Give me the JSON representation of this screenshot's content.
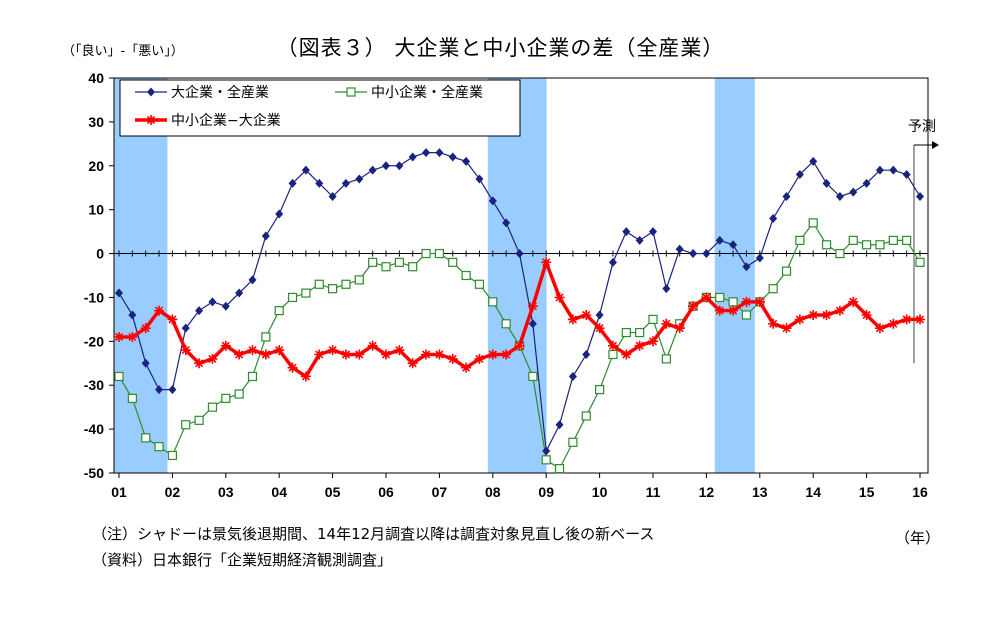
{
  "title": "（図表３） 大企業と中小企業の差（全産業）",
  "y_unit": "（「良い」-「悪い」）",
  "x_unit": "（年）",
  "note": "（注）シャドーは景気後退期間、14年12月調査以降は調査対象見直し後の新ベース",
  "source": "（資料）日本銀行「企業短期経済観測調査」",
  "forecast_label": "予測",
  "colors": {
    "large": "#1a237e",
    "small": "#2e8b2e",
    "diff": "#ff0000",
    "shade": "#99ccff"
  },
  "chart_data": {
    "type": "line",
    "title": "（図表３） 大企業と中小企業の差（全産業）",
    "ylabel": "（「良い」-「悪い」）",
    "xlabel": "（年）",
    "ylim": [
      -50,
      40
    ],
    "yticks": [
      40,
      30,
      20,
      10,
      0,
      -10,
      -20,
      -30,
      -40,
      -50
    ],
    "xlim": [
      2001,
      2016.25
    ],
    "xticks": [
      "01",
      "02",
      "03",
      "04",
      "05",
      "06",
      "07",
      "08",
      "09",
      "10",
      "11",
      "12",
      "13",
      "14",
      "15",
      "16"
    ],
    "grid": false,
    "legend_position": "top-left",
    "recession_shading": [
      [
        2001.0,
        2002.0
      ],
      [
        2008.0,
        2009.1
      ],
      [
        2012.25,
        2013.0
      ]
    ],
    "forecast_from": 2016.0,
    "series": [
      {
        "name": "大企業・全産業",
        "marker": "diamond",
        "x": [
          2001.0,
          2001.25,
          2001.5,
          2001.75,
          2002.0,
          2002.25,
          2002.5,
          2002.75,
          2003.0,
          2003.25,
          2003.5,
          2003.75,
          2004.0,
          2004.25,
          2004.5,
          2004.75,
          2005.0,
          2005.25,
          2005.5,
          2005.75,
          2006.0,
          2006.25,
          2006.5,
          2006.75,
          2007.0,
          2007.25,
          2007.5,
          2007.75,
          2008.0,
          2008.25,
          2008.5,
          2008.75,
          2009.0,
          2009.25,
          2009.5,
          2009.75,
          2010.0,
          2010.25,
          2010.5,
          2010.75,
          2011.0,
          2011.25,
          2011.5,
          2011.75,
          2012.0,
          2012.25,
          2012.5,
          2012.75,
          2013.0,
          2013.25,
          2013.5,
          2013.75,
          2014.0,
          2014.25,
          2014.5,
          2014.75,
          2015.0,
          2015.25,
          2015.5,
          2015.75,
          2016.0
        ],
        "values": [
          -9,
          -14,
          -25,
          -31,
          -31,
          -17,
          -13,
          -11,
          -12,
          -9,
          -6,
          4,
          9,
          16,
          19,
          16,
          13,
          16,
          17,
          19,
          20,
          20,
          22,
          23,
          23,
          22,
          21,
          17,
          12,
          7,
          0,
          -16,
          -45,
          -39,
          -28,
          -23,
          -14,
          -2,
          5,
          3,
          5,
          -8,
          1,
          0,
          0,
          3,
          2,
          -3,
          -1,
          8,
          13,
          18,
          21,
          16,
          13,
          14,
          16,
          19,
          19,
          18,
          13
        ]
      },
      {
        "name": "中小企業・全産業",
        "marker": "square",
        "x": [
          2001.0,
          2001.25,
          2001.5,
          2001.75,
          2002.0,
          2002.25,
          2002.5,
          2002.75,
          2003.0,
          2003.25,
          2003.5,
          2003.75,
          2004.0,
          2004.25,
          2004.5,
          2004.75,
          2005.0,
          2005.25,
          2005.5,
          2005.75,
          2006.0,
          2006.25,
          2006.5,
          2006.75,
          2007.0,
          2007.25,
          2007.5,
          2007.75,
          2008.0,
          2008.25,
          2008.5,
          2008.75,
          2009.0,
          2009.25,
          2009.5,
          2009.75,
          2010.0,
          2010.25,
          2010.5,
          2010.75,
          2011.0,
          2011.25,
          2011.5,
          2011.75,
          2012.0,
          2012.25,
          2012.5,
          2012.75,
          2013.0,
          2013.25,
          2013.5,
          2013.75,
          2014.0,
          2014.25,
          2014.5,
          2014.75,
          2015.0,
          2015.25,
          2015.5,
          2015.75,
          2016.0
        ],
        "values": [
          -28,
          -33,
          -42,
          -44,
          -46,
          -39,
          -38,
          -35,
          -33,
          -32,
          -28,
          -19,
          -13,
          -10,
          -9,
          -7,
          -8,
          -7,
          -6,
          -2,
          -3,
          -2,
          -3,
          0,
          0,
          -2,
          -5,
          -7,
          -11,
          -16,
          -21,
          -28,
          -47,
          -49,
          -43,
          -37,
          -31,
          -23,
          -18,
          -18,
          -15,
          -24,
          -16,
          -12,
          -10,
          -10,
          -11,
          -14,
          -11,
          -8,
          -4,
          3,
          7,
          2,
          0,
          3,
          2,
          2,
          3,
          3,
          -2
        ]
      },
      {
        "name": "中小企業−大企業",
        "marker": "star",
        "x": [
          2001.0,
          2001.25,
          2001.5,
          2001.75,
          2002.0,
          2002.25,
          2002.5,
          2002.75,
          2003.0,
          2003.25,
          2003.5,
          2003.75,
          2004.0,
          2004.25,
          2004.5,
          2004.75,
          2005.0,
          2005.25,
          2005.5,
          2005.75,
          2006.0,
          2006.25,
          2006.5,
          2006.75,
          2007.0,
          2007.25,
          2007.5,
          2007.75,
          2008.0,
          2008.25,
          2008.5,
          2008.75,
          2009.0,
          2009.25,
          2009.5,
          2009.75,
          2010.0,
          2010.25,
          2010.5,
          2010.75,
          2011.0,
          2011.25,
          2011.5,
          2011.75,
          2012.0,
          2012.25,
          2012.5,
          2012.75,
          2013.0,
          2013.25,
          2013.5,
          2013.75,
          2014.0,
          2014.25,
          2014.5,
          2014.75,
          2015.0,
          2015.25,
          2015.5,
          2015.75,
          2016.0
        ],
        "values": [
          -19,
          -19,
          -17,
          -13,
          -15,
          -22,
          -25,
          -24,
          -21,
          -23,
          -22,
          -23,
          -22,
          -26,
          -28,
          -23,
          -22,
          -23,
          -23,
          -21,
          -23,
          -22,
          -25,
          -23,
          -23,
          -24,
          -26,
          -24,
          -23,
          -23,
          -21,
          -12,
          -2,
          -10,
          -15,
          -14,
          -17,
          -21,
          -23,
          -21,
          -20,
          -16,
          -17,
          -12,
          -10,
          -13,
          -13,
          -11,
          -11,
          -16,
          -17,
          -15,
          -14,
          -14,
          -13,
          -11,
          -14,
          -17,
          -16,
          -15,
          -15
        ]
      }
    ]
  }
}
